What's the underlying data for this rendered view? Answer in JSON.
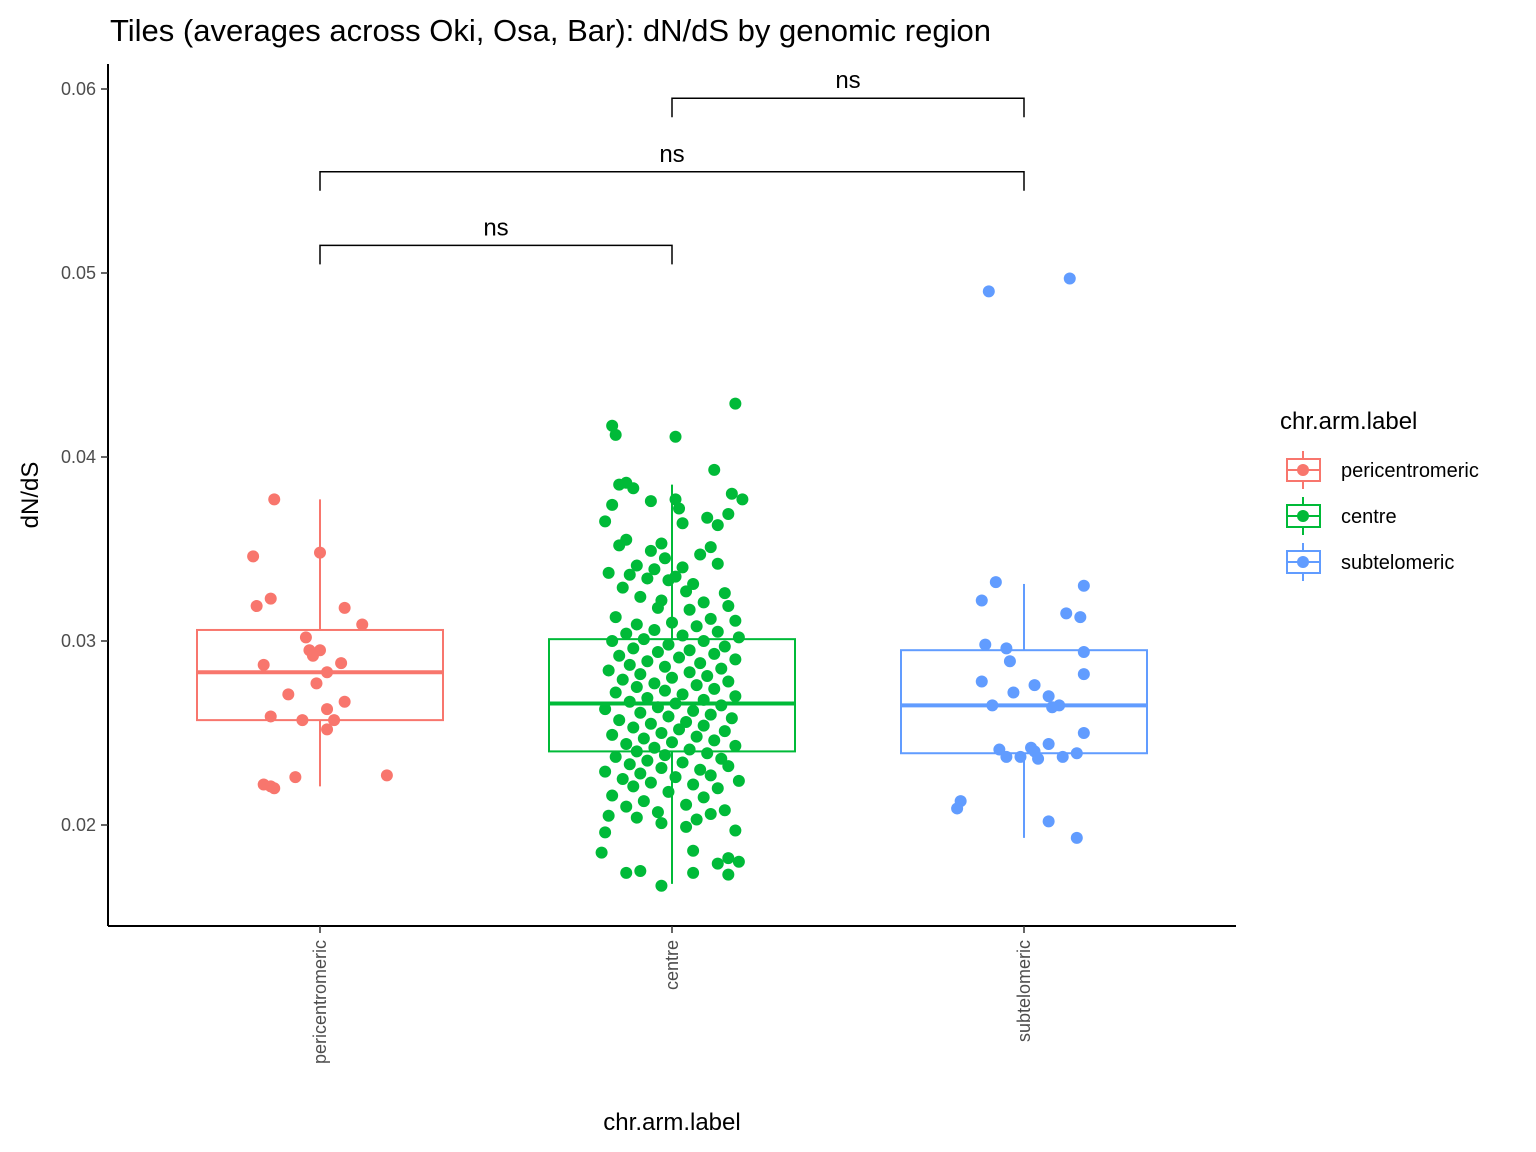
{
  "chart_data": {
    "type": "box",
    "title": "Tiles (averages across Oki, Osa, Bar): dN/dS by genomic region",
    "xlabel": "chr.arm.label",
    "ylabel": "dN/dS",
    "ylim": [
      0.0145,
      0.0615
    ],
    "yticks": [
      0.02,
      0.03,
      0.04,
      0.05,
      0.06
    ],
    "ytick_labels": [
      "0.02",
      "0.03",
      "0.04",
      "0.05",
      "0.06"
    ],
    "categories": [
      "pericentromeric",
      "centre",
      "subtelomeric"
    ],
    "grid": false,
    "legend": {
      "title": "chr.arm.label",
      "position": "right",
      "entries": [
        "pericentromeric",
        "centre",
        "subtelomeric"
      ]
    },
    "colors": [
      "#F8766D",
      "#00BA38",
      "#619CFF"
    ],
    "series": [
      {
        "category": "pericentromeric",
        "box": {
          "q1": 0.0257,
          "median": 0.0283,
          "q3": 0.0306,
          "whisker_low": 0.0221,
          "whisker_high": 0.0377
        },
        "points": [
          {
            "x": -0.13,
            "y": 0.0377
          },
          {
            "x": -0.19,
            "y": 0.0346
          },
          {
            "x": 0.0,
            "y": 0.0348
          },
          {
            "x": -0.14,
            "y": 0.0323
          },
          {
            "x": -0.18,
            "y": 0.0319
          },
          {
            "x": 0.07,
            "y": 0.0318
          },
          {
            "x": 0.12,
            "y": 0.0309
          },
          {
            "x": -0.04,
            "y": 0.0302
          },
          {
            "x": -0.03,
            "y": 0.0295
          },
          {
            "x": 0.0,
            "y": 0.0295
          },
          {
            "x": -0.02,
            "y": 0.0292
          },
          {
            "x": 0.06,
            "y": 0.0288
          },
          {
            "x": -0.16,
            "y": 0.0287
          },
          {
            "x": 0.02,
            "y": 0.0283
          },
          {
            "x": -0.01,
            "y": 0.0277
          },
          {
            "x": -0.09,
            "y": 0.0271
          },
          {
            "x": 0.07,
            "y": 0.0267
          },
          {
            "x": 0.02,
            "y": 0.0263
          },
          {
            "x": -0.14,
            "y": 0.0259
          },
          {
            "x": -0.05,
            "y": 0.0257
          },
          {
            "x": 0.04,
            "y": 0.0257
          },
          {
            "x": 0.02,
            "y": 0.0252
          },
          {
            "x": -0.07,
            "y": 0.0226
          },
          {
            "x": 0.19,
            "y": 0.0227
          },
          {
            "x": -0.16,
            "y": 0.0222
          },
          {
            "x": -0.14,
            "y": 0.0221
          },
          {
            "x": -0.13,
            "y": 0.022
          }
        ]
      },
      {
        "category": "centre",
        "box": {
          "q1": 0.024,
          "median": 0.0266,
          "q3": 0.0301,
          "whisker_low": 0.0168,
          "whisker_high": 0.0385
        },
        "points": [
          {
            "x": 0.18,
            "y": 0.0429
          },
          {
            "x": -0.17,
            "y": 0.0417
          },
          {
            "x": -0.16,
            "y": 0.0412
          },
          {
            "x": 0.01,
            "y": 0.0411
          },
          {
            "x": 0.12,
            "y": 0.0393
          },
          {
            "x": -0.13,
            "y": 0.0386
          },
          {
            "x": -0.15,
            "y": 0.0385
          },
          {
            "x": -0.11,
            "y": 0.0383
          },
          {
            "x": 0.17,
            "y": 0.038
          },
          {
            "x": 0.2,
            "y": 0.0377
          },
          {
            "x": 0.01,
            "y": 0.0377
          },
          {
            "x": -0.06,
            "y": 0.0376
          },
          {
            "x": -0.17,
            "y": 0.0374
          },
          {
            "x": 0.02,
            "y": 0.0372
          },
          {
            "x": 0.16,
            "y": 0.0369
          },
          {
            "x": 0.1,
            "y": 0.0367
          },
          {
            "x": -0.19,
            "y": 0.0365
          },
          {
            "x": 0.13,
            "y": 0.0363
          },
          {
            "x": 0.03,
            "y": 0.0364
          },
          {
            "x": -0.13,
            "y": 0.0355
          },
          {
            "x": -0.03,
            "y": 0.0353
          },
          {
            "x": -0.15,
            "y": 0.0352
          },
          {
            "x": 0.11,
            "y": 0.0351
          },
          {
            "x": -0.06,
            "y": 0.0349
          },
          {
            "x": 0.08,
            "y": 0.0347
          },
          {
            "x": -0.02,
            "y": 0.0345
          },
          {
            "x": 0.13,
            "y": 0.0342
          },
          {
            "x": -0.1,
            "y": 0.0341
          },
          {
            "x": 0.03,
            "y": 0.034
          },
          {
            "x": -0.05,
            "y": 0.0339
          },
          {
            "x": -0.18,
            "y": 0.0337
          },
          {
            "x": -0.12,
            "y": 0.0336
          },
          {
            "x": 0.01,
            "y": 0.0335
          },
          {
            "x": -0.07,
            "y": 0.0334
          },
          {
            "x": -0.01,
            "y": 0.0333
          },
          {
            "x": 0.06,
            "y": 0.0331
          },
          {
            "x": -0.14,
            "y": 0.0329
          },
          {
            "x": 0.04,
            "y": 0.0327
          },
          {
            "x": 0.15,
            "y": 0.0326
          },
          {
            "x": -0.09,
            "y": 0.0324
          },
          {
            "x": -0.03,
            "y": 0.0322
          },
          {
            "x": 0.09,
            "y": 0.0321
          },
          {
            "x": 0.16,
            "y": 0.0319
          },
          {
            "x": -0.04,
            "y": 0.0318
          },
          {
            "x": 0.05,
            "y": 0.0317
          },
          {
            "x": -0.16,
            "y": 0.0313
          },
          {
            "x": 0.11,
            "y": 0.0312
          },
          {
            "x": 0.18,
            "y": 0.0311
          },
          {
            "x": 0.0,
            "y": 0.031
          },
          {
            "x": -0.1,
            "y": 0.0309
          },
          {
            "x": 0.07,
            "y": 0.0308
          },
          {
            "x": -0.05,
            "y": 0.0306
          },
          {
            "x": 0.13,
            "y": 0.0305
          },
          {
            "x": -0.13,
            "y": 0.0304
          },
          {
            "x": 0.03,
            "y": 0.0303
          },
          {
            "x": 0.19,
            "y": 0.0302
          },
          {
            "x": -0.08,
            "y": 0.0301
          },
          {
            "x": -0.17,
            "y": 0.03
          },
          {
            "x": 0.09,
            "y": 0.03
          },
          {
            "x": -0.01,
            "y": 0.0298
          },
          {
            "x": 0.15,
            "y": 0.0297
          },
          {
            "x": -0.11,
            "y": 0.0296
          },
          {
            "x": 0.05,
            "y": 0.0295
          },
          {
            "x": -0.04,
            "y": 0.0294
          },
          {
            "x": 0.12,
            "y": 0.0293
          },
          {
            "x": -0.15,
            "y": 0.0292
          },
          {
            "x": 0.02,
            "y": 0.0291
          },
          {
            "x": 0.18,
            "y": 0.029
          },
          {
            "x": -0.07,
            "y": 0.0289
          },
          {
            "x": 0.08,
            "y": 0.0288
          },
          {
            "x": -0.12,
            "y": 0.0287
          },
          {
            "x": -0.02,
            "y": 0.0286
          },
          {
            "x": 0.14,
            "y": 0.0285
          },
          {
            "x": -0.18,
            "y": 0.0284
          },
          {
            "x": 0.05,
            "y": 0.0283
          },
          {
            "x": -0.09,
            "y": 0.0282
          },
          {
            "x": 0.1,
            "y": 0.0281
          },
          {
            "x": 0.0,
            "y": 0.028
          },
          {
            "x": -0.14,
            "y": 0.0279
          },
          {
            "x": 0.16,
            "y": 0.0278
          },
          {
            "x": -0.05,
            "y": 0.0277
          },
          {
            "x": 0.07,
            "y": 0.0276
          },
          {
            "x": -0.1,
            "y": 0.0275
          },
          {
            "x": 0.12,
            "y": 0.0274
          },
          {
            "x": -0.02,
            "y": 0.0273
          },
          {
            "x": -0.16,
            "y": 0.0272
          },
          {
            "x": 0.03,
            "y": 0.0271
          },
          {
            "x": 0.18,
            "y": 0.027
          },
          {
            "x": -0.07,
            "y": 0.0269
          },
          {
            "x": 0.09,
            "y": 0.0268
          },
          {
            "x": -0.12,
            "y": 0.0267
          },
          {
            "x": 0.01,
            "y": 0.0266
          },
          {
            "x": 0.14,
            "y": 0.0265
          },
          {
            "x": -0.04,
            "y": 0.0264
          },
          {
            "x": -0.19,
            "y": 0.0263
          },
          {
            "x": 0.06,
            "y": 0.0262
          },
          {
            "x": -0.09,
            "y": 0.0261
          },
          {
            "x": 0.11,
            "y": 0.026
          },
          {
            "x": -0.01,
            "y": 0.0259
          },
          {
            "x": 0.17,
            "y": 0.0258
          },
          {
            "x": -0.15,
            "y": 0.0257
          },
          {
            "x": 0.04,
            "y": 0.0256
          },
          {
            "x": -0.06,
            "y": 0.0255
          },
          {
            "x": 0.09,
            "y": 0.0254
          },
          {
            "x": -0.11,
            "y": 0.0253
          },
          {
            "x": 0.02,
            "y": 0.0252
          },
          {
            "x": 0.15,
            "y": 0.0251
          },
          {
            "x": -0.03,
            "y": 0.025
          },
          {
            "x": -0.17,
            "y": 0.0249
          },
          {
            "x": 0.07,
            "y": 0.0248
          },
          {
            "x": -0.08,
            "y": 0.0247
          },
          {
            "x": 0.12,
            "y": 0.0246
          },
          {
            "x": 0.0,
            "y": 0.0245
          },
          {
            "x": -0.13,
            "y": 0.0244
          },
          {
            "x": 0.18,
            "y": 0.0243
          },
          {
            "x": -0.05,
            "y": 0.0242
          },
          {
            "x": 0.05,
            "y": 0.0241
          },
          {
            "x": -0.1,
            "y": 0.024
          },
          {
            "x": 0.1,
            "y": 0.0239
          },
          {
            "x": -0.02,
            "y": 0.0238
          },
          {
            "x": -0.16,
            "y": 0.0237
          },
          {
            "x": 0.14,
            "y": 0.0236
          },
          {
            "x": -0.07,
            "y": 0.0235
          },
          {
            "x": 0.03,
            "y": 0.0234
          },
          {
            "x": -0.12,
            "y": 0.0233
          },
          {
            "x": 0.16,
            "y": 0.0232
          },
          {
            "x": -0.03,
            "y": 0.0231
          },
          {
            "x": 0.08,
            "y": 0.023
          },
          {
            "x": -0.19,
            "y": 0.0229
          },
          {
            "x": -0.09,
            "y": 0.0228
          },
          {
            "x": 0.11,
            "y": 0.0227
          },
          {
            "x": 0.01,
            "y": 0.0226
          },
          {
            "x": -0.14,
            "y": 0.0225
          },
          {
            "x": 0.19,
            "y": 0.0224
          },
          {
            "x": -0.06,
            "y": 0.0223
          },
          {
            "x": 0.06,
            "y": 0.0222
          },
          {
            "x": -0.11,
            "y": 0.0221
          },
          {
            "x": 0.13,
            "y": 0.022
          },
          {
            "x": -0.01,
            "y": 0.0218
          },
          {
            "x": -0.17,
            "y": 0.0216
          },
          {
            "x": 0.09,
            "y": 0.0215
          },
          {
            "x": -0.08,
            "y": 0.0213
          },
          {
            "x": 0.04,
            "y": 0.0211
          },
          {
            "x": -0.13,
            "y": 0.021
          },
          {
            "x": 0.15,
            "y": 0.0208
          },
          {
            "x": -0.04,
            "y": 0.0207
          },
          {
            "x": 0.11,
            "y": 0.0206
          },
          {
            "x": -0.18,
            "y": 0.0205
          },
          {
            "x": -0.1,
            "y": 0.0204
          },
          {
            "x": 0.07,
            "y": 0.0203
          },
          {
            "x": -0.03,
            "y": 0.0201
          },
          {
            "x": 0.18,
            "y": 0.0197
          },
          {
            "x": -0.19,
            "y": 0.0196
          },
          {
            "x": 0.04,
            "y": 0.0199
          },
          {
            "x": -0.2,
            "y": 0.0185
          },
          {
            "x": 0.06,
            "y": 0.0186
          },
          {
            "x": 0.16,
            "y": 0.0182
          },
          {
            "x": 0.19,
            "y": 0.018
          },
          {
            "x": 0.13,
            "y": 0.0179
          },
          {
            "x": -0.13,
            "y": 0.0174
          },
          {
            "x": -0.09,
            "y": 0.0175
          },
          {
            "x": 0.06,
            "y": 0.0174
          },
          {
            "x": 0.16,
            "y": 0.0173
          },
          {
            "x": -0.03,
            "y": 0.0167
          }
        ]
      },
      {
        "category": "subtelomeric",
        "box": {
          "q1": 0.0239,
          "median": 0.0265,
          "q3": 0.0295,
          "whisker_low": 0.0193,
          "whisker_high": 0.0331
        },
        "points": [
          {
            "x": 0.13,
            "y": 0.0497
          },
          {
            "x": -0.1,
            "y": 0.049
          },
          {
            "x": -0.08,
            "y": 0.0332
          },
          {
            "x": 0.17,
            "y": 0.033
          },
          {
            "x": -0.12,
            "y": 0.0322
          },
          {
            "x": 0.12,
            "y": 0.0315
          },
          {
            "x": 0.16,
            "y": 0.0313
          },
          {
            "x": -0.11,
            "y": 0.0298
          },
          {
            "x": -0.05,
            "y": 0.0296
          },
          {
            "x": 0.17,
            "y": 0.0294
          },
          {
            "x": -0.04,
            "y": 0.0289
          },
          {
            "x": 0.17,
            "y": 0.0282
          },
          {
            "x": -0.12,
            "y": 0.0278
          },
          {
            "x": 0.03,
            "y": 0.0276
          },
          {
            "x": -0.03,
            "y": 0.0272
          },
          {
            "x": 0.07,
            "y": 0.027
          },
          {
            "x": -0.09,
            "y": 0.0265
          },
          {
            "x": 0.1,
            "y": 0.0265
          },
          {
            "x": 0.08,
            "y": 0.0264
          },
          {
            "x": 0.17,
            "y": 0.025
          },
          {
            "x": 0.07,
            "y": 0.0244
          },
          {
            "x": 0.02,
            "y": 0.0242
          },
          {
            "x": -0.07,
            "y": 0.0241
          },
          {
            "x": 0.03,
            "y": 0.024
          },
          {
            "x": 0.15,
            "y": 0.0239
          },
          {
            "x": -0.05,
            "y": 0.0237
          },
          {
            "x": -0.01,
            "y": 0.0237
          },
          {
            "x": 0.11,
            "y": 0.0237
          },
          {
            "x": 0.04,
            "y": 0.0236
          },
          {
            "x": -0.18,
            "y": 0.0213
          },
          {
            "x": -0.19,
            "y": 0.0209
          },
          {
            "x": 0.07,
            "y": 0.0202
          },
          {
            "x": 0.15,
            "y": 0.0193
          }
        ]
      }
    ],
    "comparisons": [
      {
        "groups": [
          "pericentromeric",
          "centre"
        ],
        "label": "ns",
        "y": 0.0515
      },
      {
        "groups": [
          "pericentromeric",
          "subtelomeric"
        ],
        "label": "ns",
        "y": 0.0555
      },
      {
        "groups": [
          "centre",
          "subtelomeric"
        ],
        "label": "ns",
        "y": 0.0595
      }
    ]
  }
}
